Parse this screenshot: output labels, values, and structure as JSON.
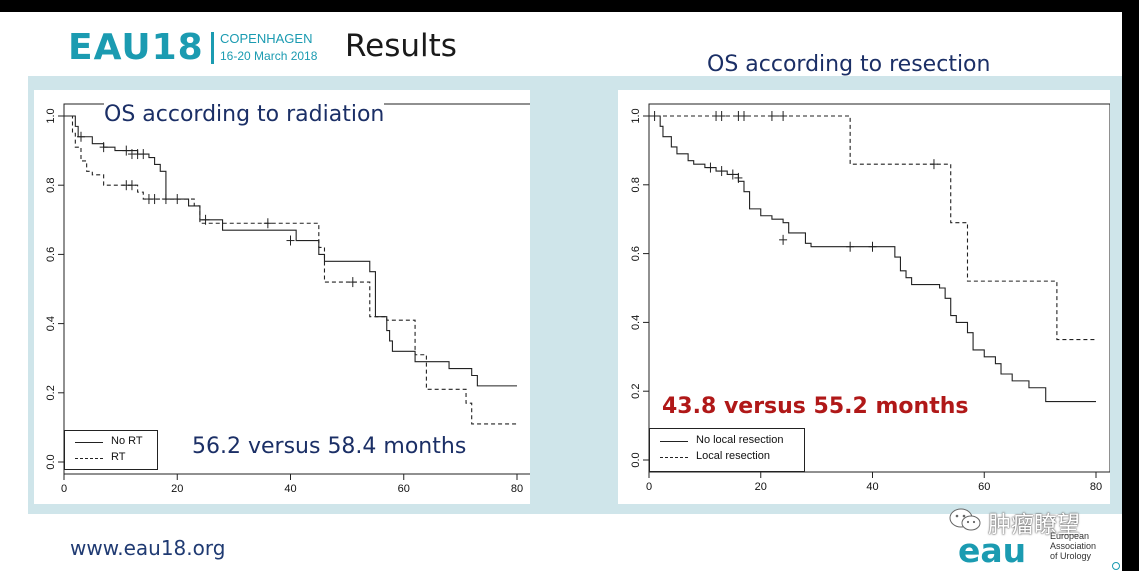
{
  "header": {
    "logo_text": "EAU18",
    "city": "COPENHAGEN",
    "dates": "16-20 March 2018",
    "title": "Results"
  },
  "right_caption": "OS according to resection",
  "footer": {
    "url": "www.eau18.org",
    "watermark": "肿瘤瞭望",
    "org_mark": "eau",
    "org_lines": [
      "European",
      "Association",
      "of Urology"
    ]
  },
  "colors": {
    "brand": "#1b9bb1",
    "caption": "#1b2f66",
    "median_right": "#b01818",
    "band": "#cfe5ea"
  },
  "chart_data": [
    {
      "type": "line",
      "title": "OS according to radiation",
      "annotation": "56.2 versus 58.4 months",
      "xlim": [
        0,
        80
      ],
      "ylim": [
        0,
        1
      ],
      "xticks": [
        "0",
        "20",
        "40",
        "60",
        "80"
      ],
      "yticks": [
        "0.0",
        "0.2",
        "0.4",
        "0.6",
        "0.8",
        "1.0"
      ],
      "series": [
        {
          "name": "No RT",
          "style": "solid",
          "steps": [
            [
              0,
              1.0
            ],
            [
              2,
              0.97
            ],
            [
              2.5,
              0.94
            ],
            [
              5,
              0.92
            ],
            [
              7,
              0.91
            ],
            [
              9,
              0.9
            ],
            [
              13,
              0.89
            ],
            [
              15,
              0.88
            ],
            [
              16,
              0.86
            ],
            [
              17,
              0.84
            ],
            [
              18,
              0.76
            ],
            [
              22,
              0.74
            ],
            [
              24,
              0.7
            ],
            [
              28,
              0.67
            ],
            [
              33,
              0.67
            ],
            [
              41,
              0.64
            ],
            [
              45,
              0.6
            ],
            [
              46,
              0.58
            ],
            [
              52,
              0.58
            ],
            [
              54,
              0.55
            ],
            [
              55,
              0.42
            ],
            [
              57,
              0.38
            ],
            [
              57.5,
              0.35
            ],
            [
              58,
              0.32
            ],
            [
              60,
              0.32
            ],
            [
              62,
              0.29
            ],
            [
              63,
              0.29
            ],
            [
              68,
              0.27
            ],
            [
              72,
              0.25
            ],
            [
              73,
              0.22
            ],
            [
              80,
              0.22
            ]
          ],
          "censors": [
            [
              3,
              0.94
            ],
            [
              7,
              0.91
            ],
            [
              11,
              0.9
            ],
            [
              12,
              0.89
            ],
            [
              13,
              0.89
            ],
            [
              14,
              0.89
            ],
            [
              25,
              0.7
            ],
            [
              40,
              0.64
            ]
          ]
        },
        {
          "name": "RT",
          "style": "dashed",
          "steps": [
            [
              0,
              1.0
            ],
            [
              1.5,
              0.95
            ],
            [
              2,
              0.91
            ],
            [
              3,
              0.87
            ],
            [
              4,
              0.84
            ],
            [
              5,
              0.83
            ],
            [
              7,
              0.8
            ],
            [
              13,
              0.78
            ],
            [
              14,
              0.76
            ],
            [
              23,
              0.74
            ],
            [
              24,
              0.69
            ],
            [
              45,
              0.62
            ],
            [
              46,
              0.52
            ],
            [
              52,
              0.52
            ],
            [
              54,
              0.42
            ],
            [
              56,
              0.42
            ],
            [
              57,
              0.41
            ],
            [
              62,
              0.31
            ],
            [
              64,
              0.21
            ],
            [
              71,
              0.17
            ],
            [
              72,
              0.11
            ],
            [
              80,
              0.11
            ]
          ],
          "censors": [
            [
              11,
              0.8
            ],
            [
              12,
              0.8
            ],
            [
              15,
              0.76
            ],
            [
              16,
              0.76
            ],
            [
              18,
              0.76
            ],
            [
              20,
              0.76
            ],
            [
              36,
              0.69
            ],
            [
              51,
              0.52
            ]
          ]
        }
      ]
    },
    {
      "type": "line",
      "title": "OS according to resection",
      "annotation": "43.8 versus 55.2 months",
      "xlim": [
        0,
        80
      ],
      "ylim": [
        0,
        1
      ],
      "xticks": [
        "0",
        "20",
        "40",
        "60",
        "80"
      ],
      "yticks": [
        "0.0",
        "0.2",
        "0.4",
        "0.6",
        "0.8",
        "1.0"
      ],
      "series": [
        {
          "name": "No local resection",
          "style": "solid",
          "steps": [
            [
              0,
              1.0
            ],
            [
              2,
              0.97
            ],
            [
              2.5,
              0.94
            ],
            [
              4,
              0.91
            ],
            [
              5,
              0.89
            ],
            [
              7,
              0.87
            ],
            [
              8,
              0.86
            ],
            [
              10,
              0.85
            ],
            [
              12,
              0.84
            ],
            [
              14,
              0.83
            ],
            [
              16,
              0.81
            ],
            [
              17,
              0.78
            ],
            [
              18,
              0.73
            ],
            [
              20,
              0.71
            ],
            [
              22,
              0.7
            ],
            [
              24,
              0.69
            ],
            [
              25,
              0.66
            ],
            [
              28,
              0.63
            ],
            [
              29,
              0.62
            ],
            [
              44,
              0.59
            ],
            [
              45,
              0.55
            ],
            [
              46,
              0.53
            ],
            [
              47,
              0.51
            ],
            [
              52,
              0.5
            ],
            [
              53,
              0.47
            ],
            [
              54,
              0.42
            ],
            [
              55,
              0.4
            ],
            [
              57,
              0.37
            ],
            [
              58,
              0.32
            ],
            [
              60,
              0.3
            ],
            [
              62,
              0.28
            ],
            [
              63,
              0.25
            ],
            [
              65,
              0.23
            ],
            [
              68,
              0.21
            ],
            [
              71,
              0.17
            ],
            [
              80,
              0.17
            ]
          ],
          "censors": [
            [
              1,
              1.0
            ],
            [
              11,
              0.85
            ],
            [
              13,
              0.84
            ],
            [
              15,
              0.83
            ],
            [
              16,
              0.82
            ],
            [
              24,
              0.64
            ],
            [
              36,
              0.62
            ],
            [
              40,
              0.62
            ]
          ]
        },
        {
          "name": "Local resection",
          "style": "dashed",
          "steps": [
            [
              0,
              1.0
            ],
            [
              36,
              0.86
            ],
            [
              54,
              0.69
            ],
            [
              57,
              0.52
            ],
            [
              73,
              0.35
            ],
            [
              80,
              0.35
            ]
          ],
          "censors": [
            [
              12,
              1.0
            ],
            [
              13,
              1.0
            ],
            [
              16,
              1.0
            ],
            [
              17,
              1.0
            ],
            [
              22,
              1.0
            ],
            [
              24,
              1.0
            ],
            [
              51,
              0.86
            ]
          ]
        }
      ]
    }
  ]
}
